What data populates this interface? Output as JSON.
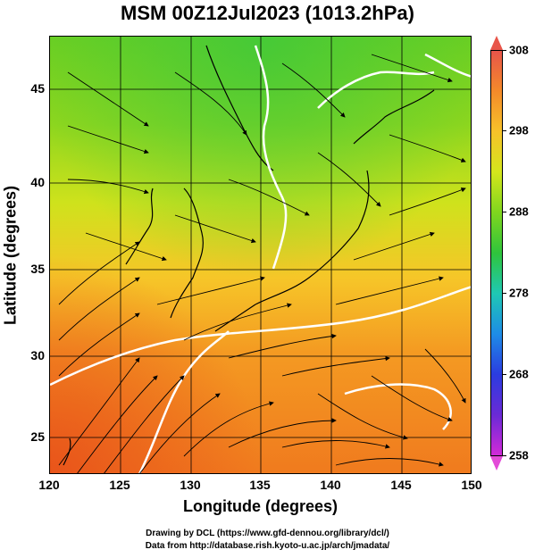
{
  "title": "MSM 00Z12Jul2023 (1013.2hPa)",
  "xlabel": "Longitude (degrees)",
  "ylabel": "Latitude  (degrees)",
  "x_ticks": [
    "120",
    "125",
    "130",
    "135",
    "140",
    "145",
    "150"
  ],
  "y_ticks": [
    "25",
    "30",
    "35",
    "40",
    "45"
  ],
  "colorbar": {
    "ticks": [
      "308",
      "298",
      "288",
      "278",
      "268",
      "258"
    ],
    "colors": [
      "#e8554a",
      "#f48a2a",
      "#f6c22a",
      "#d4e61c",
      "#7fd61e",
      "#2fc43c",
      "#1fc8b4",
      "#1e8ce6",
      "#2b3ce0",
      "#6a2ad6",
      "#d22ad8"
    ]
  },
  "credits": {
    "line1": "Drawing by DCL (https://www.gfd-dennou.org/library/dcl/)",
    "line2": "Data from http://database.rish.kyoto-u.ac.jp/arch/jmadata/"
  },
  "chart_data": {
    "type": "heatmap",
    "title": "MSM 00Z12Jul2023 (1013.2hPa)",
    "xlabel": "Longitude (degrees)",
    "ylabel": "Latitude  (degrees)",
    "xlim": [
      120,
      150
    ],
    "ylim": [
      22.5,
      48
    ],
    "colorbar_range": [
      258,
      308
    ],
    "colorbar_ticks": [
      308,
      298,
      288,
      278,
      268,
      258
    ],
    "overlay": "streamlines with arrows, white contour lines, coastlines"
  }
}
